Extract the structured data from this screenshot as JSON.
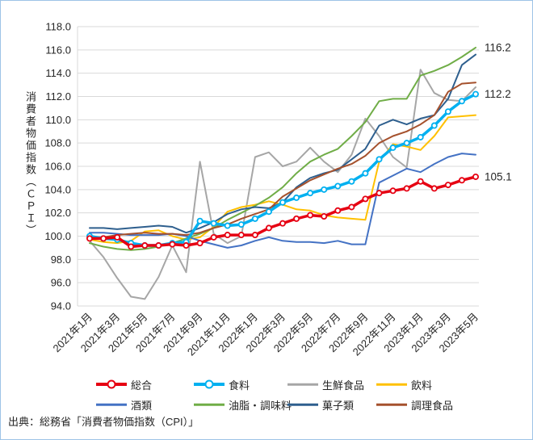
{
  "frame": {
    "border_color": "#9dc3e6",
    "background": "#ffffff"
  },
  "source_note": "出典：総務省「消費者物価指数（CPI）」",
  "chart_data": {
    "type": "line",
    "title": "",
    "y_axis_title": "消費者物価指数（ＣＰＩ）",
    "ylim": [
      94.0,
      118.0
    ],
    "y_tick_step": 2.0,
    "grid": "horizontal",
    "gridline_color": "#d9d9d9",
    "legend_position": "bottom",
    "x": [
      "2021年1月",
      "2021年2月",
      "2021年3月",
      "2021年4月",
      "2021年5月",
      "2021年6月",
      "2021年7月",
      "2021年8月",
      "2021年9月",
      "2021年10月",
      "2021年11月",
      "2021年12月",
      "2022年1月",
      "2022年2月",
      "2022年3月",
      "2022年4月",
      "2022年5月",
      "2022年6月",
      "2022年7月",
      "2022年8月",
      "2022年9月",
      "2022年10月",
      "2022年11月",
      "2022年12月",
      "2023年1月",
      "2023年2月",
      "2023年3月",
      "2023年4月",
      "2023年5月"
    ],
    "x_tick_labels": [
      "2021年1月",
      "2021年3月",
      "2021年5月",
      "2021年7月",
      "2021年9月",
      "2021年11月",
      "2022年1月",
      "2022年3月",
      "2022年5月",
      "2022年7月",
      "2022年9月",
      "2022年11月",
      "2023年1月",
      "2023年3月",
      "2023年5月"
    ],
    "series": [
      {
        "key": "sogo",
        "name": "総合",
        "color": "#e60012",
        "width": 3.5,
        "marker": true,
        "end_label": "105.1",
        "values": [
          99.8,
          99.8,
          99.9,
          99.1,
          99.2,
          99.2,
          99.3,
          99.2,
          99.4,
          99.9,
          100.1,
          100.1,
          100.1,
          100.7,
          101.1,
          101.5,
          101.8,
          101.7,
          102.2,
          102.5,
          103.2,
          103.7,
          103.9,
          104.1,
          104.7,
          104.1,
          104.4,
          104.8,
          105.1
        ]
      },
      {
        "key": "shokuryo",
        "name": "食料",
        "color": "#00b0f0",
        "width": 3.5,
        "marker": true,
        "end_label": "112.2",
        "values": [
          100.0,
          99.8,
          99.7,
          99.4,
          99.2,
          99.2,
          99.4,
          99.5,
          101.3,
          101.1,
          100.9,
          101.0,
          101.5,
          102.1,
          102.9,
          103.3,
          103.7,
          104.0,
          104.3,
          104.7,
          105.4,
          106.6,
          107.6,
          108.0,
          108.5,
          109.5,
          110.7,
          111.6,
          112.2
        ]
      },
      {
        "key": "seisen-shokuhin",
        "name": "生鮮食品",
        "color": "#a6a6a6",
        "width": 2,
        "marker": false,
        "end_label": "",
        "values": [
          99.6,
          98.2,
          96.4,
          94.8,
          94.6,
          96.5,
          99.2,
          96.9,
          106.4,
          100.2,
          99.4,
          100.0,
          106.8,
          107.2,
          106.0,
          106.4,
          107.6,
          106.4,
          105.5,
          107.0,
          110.1,
          108.6,
          106.8,
          105.9,
          114.3,
          112.3,
          111.7,
          111.6,
          112.8
        ]
      },
      {
        "key": "inryo",
        "name": "飲料",
        "color": "#ffc000",
        "width": 2,
        "marker": false,
        "end_label": "",
        "values": [
          99.7,
          99.5,
          99.4,
          99.6,
          100.4,
          100.5,
          100.0,
          99.7,
          99.9,
          100.8,
          102.1,
          102.5,
          102.7,
          103.0,
          102.7,
          102.3,
          102.2,
          101.8,
          101.6,
          101.5,
          101.4,
          106.4,
          107.9,
          107.7,
          107.4,
          108.6,
          110.2,
          110.3,
          110.4
        ]
      },
      {
        "key": "sakerui",
        "name": "酒類",
        "color": "#4472c4",
        "width": 2,
        "marker": false,
        "end_label": "",
        "values": [
          100.3,
          100.3,
          100.2,
          100.1,
          100.1,
          100.1,
          100.2,
          100.0,
          99.6,
          99.3,
          99.0,
          99.2,
          99.6,
          99.9,
          99.6,
          99.5,
          99.5,
          99.4,
          99.6,
          99.3,
          99.3,
          104.6,
          105.2,
          105.8,
          105.5,
          106.2,
          106.8,
          107.1,
          107.0
        ]
      },
      {
        "key": "yushi-chomiryo",
        "name": "油脂・調味料",
        "color": "#70ad47",
        "width": 2,
        "marker": false,
        "end_label": "116.2",
        "values": [
          99.4,
          99.1,
          98.9,
          98.8,
          98.9,
          99.1,
          99.4,
          99.8,
          100.2,
          100.7,
          101.4,
          102.0,
          102.6,
          103.3,
          104.2,
          105.4,
          106.4,
          107.0,
          107.5,
          108.6,
          109.8,
          111.6,
          111.8,
          111.8,
          113.8,
          114.2,
          114.7,
          115.4,
          116.2
        ]
      },
      {
        "key": "kashirui",
        "name": "菓子類",
        "color": "#2e5f8e",
        "width": 2,
        "marker": false,
        "end_label": "",
        "values": [
          100.7,
          100.7,
          100.6,
          100.7,
          100.8,
          100.9,
          100.8,
          100.3,
          100.7,
          101.2,
          101.9,
          102.3,
          102.5,
          102.4,
          102.9,
          104.2,
          105.0,
          105.4,
          105.7,
          106.6,
          107.5,
          109.5,
          110.0,
          109.6,
          110.1,
          110.4,
          111.8,
          114.7,
          115.6
        ]
      },
      {
        "key": "chori-shokuhin",
        "name": "調理食品",
        "color": "#a5512d",
        "width": 2,
        "marker": false,
        "end_label": "",
        "values": [
          99.9,
          99.9,
          100.1,
          100.2,
          100.3,
          100.2,
          100.2,
          100.1,
          100.3,
          100.7,
          101.0,
          101.5,
          101.9,
          102.3,
          103.4,
          104.1,
          104.8,
          105.3,
          105.8,
          106.2,
          106.9,
          108.0,
          108.6,
          109.0,
          109.6,
          110.4,
          112.4,
          113.1,
          113.2
        ]
      }
    ],
    "draw_order": [
      2,
      3,
      4,
      5,
      6,
      7,
      1,
      0
    ]
  }
}
